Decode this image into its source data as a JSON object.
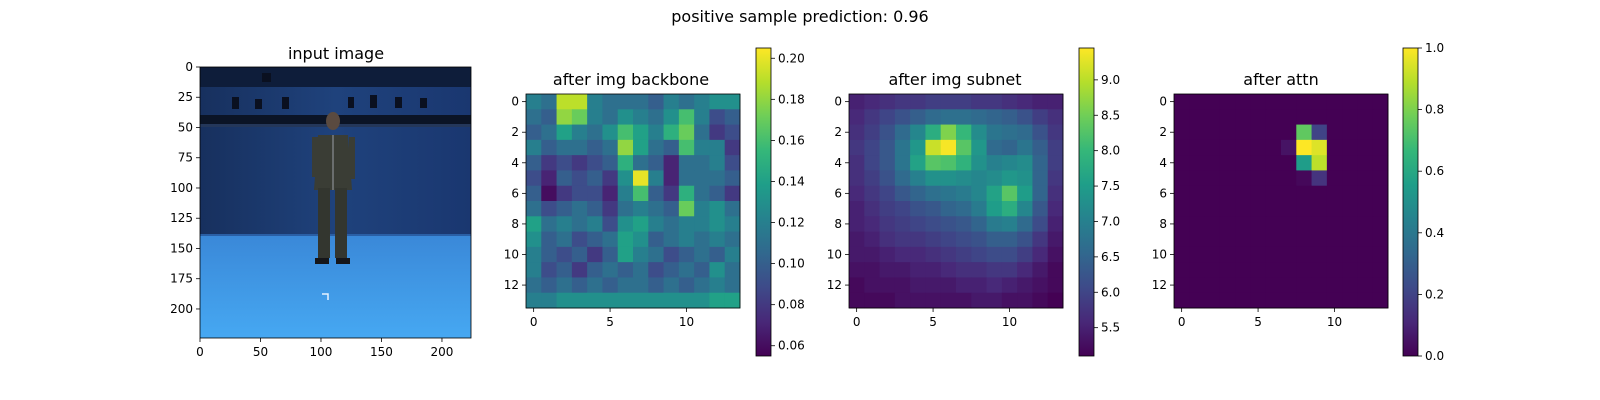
{
  "figure": {
    "title": "positive sample     prediction: 0.96"
  },
  "colormap": [
    "#440154",
    "#482878",
    "#3e4a89",
    "#31688e",
    "#26828e",
    "#1f9e89",
    "#35b779",
    "#6ece58",
    "#b5de2b",
    "#fde725"
  ],
  "chart_data": [
    {
      "type": "image",
      "title": "input image",
      "image_extent": [
        224,
        224
      ],
      "x_ticks": [
        0,
        50,
        100,
        150,
        200
      ],
      "y_ticks": [
        0,
        25,
        50,
        75,
        100,
        125,
        150,
        175,
        200
      ],
      "content": "photo of a person standing in a blue-screen motion-capture studio with ceiling cameras"
    },
    {
      "type": "heatmap",
      "title": "after img backbone",
      "x_ticks": [
        0,
        5,
        10
      ],
      "y_ticks": [
        0,
        2,
        4,
        6,
        8,
        10,
        12
      ],
      "colorbar": {
        "min": 0.055,
        "max": 0.205,
        "ticks": [
          0.06,
          0.08,
          0.1,
          0.12,
          0.14,
          0.16,
          0.18,
          0.2
        ],
        "tick_labels": [
          "0.06",
          "0.08",
          "0.10",
          "0.12",
          "0.14",
          "0.16",
          "0.18",
          "0.20"
        ]
      },
      "z": [
        [
          0.12,
          0.11,
          0.19,
          0.19,
          0.12,
          0.11,
          0.11,
          0.11,
          0.1,
          0.12,
          0.11,
          0.12,
          0.13,
          0.13
        ],
        [
          0.11,
          0.1,
          0.18,
          0.17,
          0.12,
          0.11,
          0.13,
          0.12,
          0.11,
          0.13,
          0.16,
          0.12,
          0.09,
          0.1
        ],
        [
          0.1,
          0.11,
          0.14,
          0.12,
          0.11,
          0.13,
          0.16,
          0.14,
          0.12,
          0.15,
          0.17,
          0.11,
          0.08,
          0.09
        ],
        [
          0.12,
          0.1,
          0.11,
          0.11,
          0.1,
          0.11,
          0.18,
          0.14,
          0.11,
          0.1,
          0.16,
          0.12,
          0.12,
          0.08
        ],
        [
          0.1,
          0.08,
          0.09,
          0.08,
          0.09,
          0.1,
          0.15,
          0.11,
          0.1,
          0.07,
          0.11,
          0.11,
          0.12,
          0.09
        ],
        [
          0.09,
          0.07,
          0.1,
          0.09,
          0.1,
          0.08,
          0.13,
          0.2,
          0.12,
          0.07,
          0.11,
          0.11,
          0.11,
          0.1
        ],
        [
          0.1,
          0.06,
          0.08,
          0.09,
          0.09,
          0.07,
          0.12,
          0.16,
          0.1,
          0.08,
          0.15,
          0.11,
          0.1,
          0.08
        ],
        [
          0.11,
          0.09,
          0.1,
          0.11,
          0.1,
          0.08,
          0.11,
          0.12,
          0.11,
          0.1,
          0.17,
          0.12,
          0.13,
          0.11
        ],
        [
          0.14,
          0.11,
          0.12,
          0.11,
          0.12,
          0.09,
          0.13,
          0.14,
          0.12,
          0.11,
          0.12,
          0.12,
          0.13,
          0.12
        ],
        [
          0.13,
          0.1,
          0.11,
          0.09,
          0.1,
          0.11,
          0.14,
          0.13,
          0.1,
          0.11,
          0.12,
          0.11,
          0.12,
          0.11
        ],
        [
          0.12,
          0.1,
          0.09,
          0.1,
          0.08,
          0.1,
          0.14,
          0.12,
          0.11,
          0.09,
          0.1,
          0.11,
          0.1,
          0.12
        ],
        [
          0.12,
          0.09,
          0.1,
          0.08,
          0.1,
          0.11,
          0.1,
          0.11,
          0.09,
          0.1,
          0.11,
          0.1,
          0.13,
          0.11
        ],
        [
          0.11,
          0.1,
          0.11,
          0.1,
          0.11,
          0.1,
          0.11,
          0.11,
          0.1,
          0.11,
          0.1,
          0.11,
          0.12,
          0.11
        ],
        [
          0.12,
          0.12,
          0.13,
          0.13,
          0.13,
          0.13,
          0.13,
          0.13,
          0.13,
          0.13,
          0.13,
          0.13,
          0.14,
          0.14
        ]
      ]
    },
    {
      "type": "heatmap",
      "title": "after img subnet",
      "x_ticks": [
        0,
        5,
        10
      ],
      "y_ticks": [
        0,
        2,
        4,
        6,
        8,
        10,
        12
      ],
      "colorbar": {
        "min": 5.1,
        "max": 9.45,
        "ticks": [
          5.5,
          6.0,
          6.5,
          7.0,
          7.5,
          8.0,
          8.5,
          9.0
        ],
        "tick_labels": [
          "5.5",
          "6.0",
          "6.5",
          "7.0",
          "7.5",
          "8.0",
          "8.5",
          "9.0"
        ]
      },
      "z": [
        [
          5.5,
          5.6,
          5.7,
          5.8,
          5.8,
          5.9,
          5.9,
          5.9,
          5.8,
          5.8,
          5.7,
          5.6,
          5.5,
          5.5
        ],
        [
          5.6,
          5.8,
          6.0,
          6.2,
          6.4,
          6.6,
          6.7,
          6.7,
          6.6,
          6.5,
          6.4,
          6.2,
          5.9,
          5.7
        ],
        [
          5.7,
          5.9,
          6.2,
          6.6,
          7.1,
          7.8,
          8.6,
          8.0,
          7.2,
          6.8,
          6.7,
          6.6,
          6.2,
          5.8
        ],
        [
          5.8,
          6.0,
          6.3,
          6.8,
          7.4,
          9.1,
          9.4,
          8.3,
          7.4,
          6.6,
          6.5,
          6.8,
          6.4,
          5.9
        ],
        [
          5.7,
          6.0,
          6.3,
          6.8,
          7.6,
          8.3,
          8.2,
          7.9,
          7.3,
          7.0,
          7.1,
          7.2,
          6.5,
          5.9
        ],
        [
          5.7,
          5.9,
          6.2,
          6.6,
          7.0,
          7.3,
          7.3,
          7.2,
          7.1,
          7.2,
          7.4,
          7.3,
          6.5,
          5.8
        ],
        [
          5.6,
          5.8,
          6.0,
          6.3,
          6.5,
          6.7,
          6.8,
          6.9,
          7.1,
          7.6,
          8.3,
          7.5,
          6.5,
          5.7
        ],
        [
          5.5,
          5.7,
          5.9,
          6.0,
          6.2,
          6.3,
          6.5,
          6.6,
          6.9,
          7.5,
          7.8,
          7.1,
          6.3,
          5.6
        ],
        [
          5.5,
          5.6,
          5.8,
          5.9,
          6.0,
          6.1,
          6.2,
          6.3,
          6.5,
          6.9,
          7.0,
          6.6,
          6.1,
          5.5
        ],
        [
          5.4,
          5.5,
          5.7,
          5.8,
          5.8,
          5.9,
          6.0,
          6.1,
          6.2,
          6.4,
          6.4,
          6.2,
          5.8,
          5.4
        ],
        [
          5.4,
          5.4,
          5.5,
          5.6,
          5.6,
          5.7,
          5.8,
          5.9,
          6.0,
          6.1,
          6.1,
          5.9,
          5.6,
          5.3
        ],
        [
          5.3,
          5.3,
          5.4,
          5.4,
          5.5,
          5.5,
          5.6,
          5.7,
          5.7,
          5.8,
          5.8,
          5.6,
          5.4,
          5.2
        ],
        [
          5.2,
          5.3,
          5.3,
          5.3,
          5.4,
          5.4,
          5.4,
          5.5,
          5.5,
          5.6,
          5.5,
          5.4,
          5.3,
          5.2
        ],
        [
          5.2,
          5.2,
          5.2,
          5.3,
          5.3,
          5.3,
          5.3,
          5.3,
          5.4,
          5.4,
          5.3,
          5.3,
          5.2,
          5.1
        ]
      ]
    },
    {
      "type": "heatmap",
      "title": "after attn",
      "x_ticks": [
        0,
        5,
        10
      ],
      "y_ticks": [
        0,
        2,
        4,
        6,
        8,
        10,
        12
      ],
      "colorbar": {
        "min": 0.0,
        "max": 1.0,
        "ticks": [
          0.0,
          0.2,
          0.4,
          0.6,
          0.8,
          1.0
        ],
        "tick_labels": [
          "0.0",
          "0.2",
          "0.4",
          "0.6",
          "0.8",
          "1.0"
        ]
      },
      "z": [
        [
          0,
          0,
          0,
          0,
          0,
          0,
          0,
          0,
          0,
          0,
          0,
          0,
          0,
          0
        ],
        [
          0,
          0,
          0,
          0,
          0,
          0,
          0,
          0,
          0,
          0,
          0,
          0,
          0,
          0
        ],
        [
          0,
          0,
          0,
          0,
          0,
          0,
          0,
          0,
          0.75,
          0.2,
          0,
          0,
          0,
          0
        ],
        [
          0,
          0,
          0,
          0,
          0,
          0,
          0,
          0.05,
          1.0,
          0.95,
          0,
          0,
          0,
          0
        ],
        [
          0,
          0,
          0,
          0,
          0,
          0,
          0,
          0,
          0.55,
          0.9,
          0,
          0,
          0,
          0
        ],
        [
          0,
          0,
          0,
          0,
          0,
          0,
          0,
          0,
          0.02,
          0.15,
          0,
          0,
          0,
          0
        ],
        [
          0,
          0,
          0,
          0,
          0,
          0,
          0,
          0,
          0,
          0,
          0,
          0,
          0,
          0
        ],
        [
          0,
          0,
          0,
          0,
          0,
          0,
          0,
          0,
          0,
          0,
          0,
          0,
          0,
          0
        ],
        [
          0,
          0,
          0,
          0,
          0,
          0,
          0,
          0,
          0,
          0,
          0,
          0,
          0,
          0
        ],
        [
          0,
          0,
          0,
          0,
          0,
          0,
          0,
          0,
          0,
          0,
          0,
          0,
          0,
          0
        ],
        [
          0,
          0,
          0,
          0,
          0,
          0,
          0,
          0,
          0,
          0,
          0,
          0,
          0,
          0
        ],
        [
          0,
          0,
          0,
          0,
          0,
          0,
          0,
          0,
          0,
          0,
          0,
          0,
          0,
          0
        ],
        [
          0,
          0,
          0,
          0,
          0,
          0,
          0,
          0,
          0,
          0,
          0,
          0,
          0,
          0
        ],
        [
          0,
          0,
          0,
          0,
          0,
          0,
          0,
          0,
          0,
          0,
          0,
          0,
          0,
          0
        ]
      ]
    }
  ]
}
